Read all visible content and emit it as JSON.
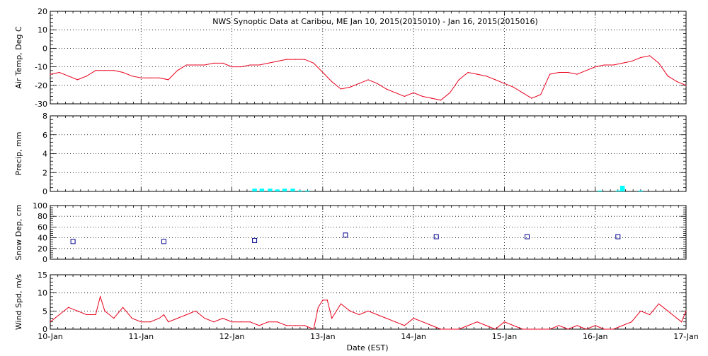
{
  "chart_data": {
    "title": "NWS Synoptic Data at Caribou, ME   Jan 10, 2015(2015010) - Jan 16, 2015(2015016)",
    "xlabel": "Date (EST)",
    "x_ticks": [
      "10-Jan",
      "11-Jan",
      "12-Jan",
      "13-Jan",
      "14-Jan",
      "15-Jan",
      "16-Jan",
      "17-Jan"
    ],
    "x_range_days": [
      0,
      7
    ],
    "grid": true,
    "panels": [
      {
        "id": "air-temp",
        "type": "line",
        "ylabel": "Air Temp, Deg C",
        "ylim": [
          -30,
          20
        ],
        "yticks": [
          "-30",
          "-20",
          "-10",
          "0",
          "10",
          "20"
        ],
        "ytick_values": [
          -30,
          -20,
          -10,
          0,
          10,
          20
        ],
        "color": "#e8001c",
        "x": [
          0,
          0.1,
          0.2,
          0.3,
          0.4,
          0.5,
          0.6,
          0.7,
          0.8,
          0.9,
          1.0,
          1.1,
          1.2,
          1.3,
          1.4,
          1.5,
          1.6,
          1.7,
          1.8,
          1.9,
          2.0,
          2.1,
          2.2,
          2.3,
          2.4,
          2.5,
          2.6,
          2.7,
          2.8,
          2.9,
          3.0,
          3.1,
          3.2,
          3.3,
          3.4,
          3.5,
          3.6,
          3.7,
          3.8,
          3.9,
          4.0,
          4.1,
          4.2,
          4.3,
          4.4,
          4.5,
          4.6,
          4.7,
          4.8,
          4.9,
          5.0,
          5.1,
          5.2,
          5.3,
          5.4,
          5.5,
          5.6,
          5.7,
          5.8,
          5.9,
          6.0,
          6.1,
          6.2,
          6.3,
          6.4,
          6.5,
          6.6,
          6.7,
          6.8,
          6.9,
          7.0
        ],
        "values": [
          -14,
          -13,
          -15,
          -17,
          -15,
          -12,
          -12,
          -12,
          -13,
          -15,
          -16,
          -16,
          -16,
          -17,
          -12,
          -9,
          -9,
          -9,
          -8,
          -8,
          -10,
          -10,
          -9,
          -9,
          -8,
          -7,
          -6,
          -6,
          -6,
          -8,
          -13,
          -18,
          -22,
          -21,
          -19,
          -17,
          -19,
          -22,
          -24,
          -26,
          -24,
          -26,
          -27,
          -28,
          -24,
          -17,
          -13,
          -14,
          -15,
          -17,
          -19,
          -21,
          -24,
          -27,
          -25,
          -14,
          -13,
          -13,
          -14,
          -12,
          -10,
          -9,
          -9,
          -8,
          -7,
          -5,
          -4,
          -8,
          -15,
          -18,
          -20
        ]
      },
      {
        "id": "precip",
        "type": "bar",
        "ylabel": "Precip, mm",
        "ylim": [
          0,
          8
        ],
        "yticks": [
          "0",
          "2",
          "4",
          "6",
          "8"
        ],
        "ytick_values": [
          0,
          2,
          4,
          6,
          8
        ],
        "color": "#00ffff",
        "bar_width_days": 0.05,
        "x": [
          2.25,
          2.33,
          2.42,
          2.5,
          2.58,
          2.67,
          2.75,
          2.83,
          6.05,
          6.25,
          6.3,
          6.5
        ],
        "values": [
          0.3,
          0.3,
          0.3,
          0.2,
          0.3,
          0.3,
          0.1,
          0.1,
          0.1,
          0.1,
          0.6,
          0.1
        ]
      },
      {
        "id": "snow-depth",
        "type": "scatter",
        "ylabel": "Snow Dep, cm",
        "ylim": [
          0,
          100
        ],
        "yticks": [
          "0",
          "20",
          "40",
          "60",
          "80",
          "100"
        ],
        "ytick_values": [
          0,
          20,
          40,
          60,
          80,
          100
        ],
        "color": "#00008b",
        "marker": "open-square",
        "x": [
          0.25,
          1.25,
          2.25,
          3.25,
          4.25,
          5.25,
          6.25
        ],
        "values": [
          33,
          33,
          35,
          45,
          42,
          42,
          42
        ]
      },
      {
        "id": "wind-speed",
        "type": "line",
        "ylabel": "Wind Spd, m/s",
        "ylim": [
          0,
          15
        ],
        "yticks": [
          "0",
          "5",
          "10",
          "15"
        ],
        "ytick_values": [
          0,
          5,
          10,
          15
        ],
        "color": "#e8001c",
        "x": [
          0,
          0.1,
          0.2,
          0.3,
          0.4,
          0.5,
          0.55,
          0.6,
          0.7,
          0.8,
          0.9,
          1.0,
          1.1,
          1.2,
          1.25,
          1.3,
          1.4,
          1.5,
          1.6,
          1.7,
          1.8,
          1.9,
          2.0,
          2.1,
          2.2,
          2.3,
          2.4,
          2.5,
          2.6,
          2.7,
          2.8,
          2.9,
          2.95,
          3.0,
          3.05,
          3.1,
          3.2,
          3.3,
          3.4,
          3.5,
          3.6,
          3.7,
          3.8,
          3.9,
          4.0,
          4.1,
          4.2,
          4.3,
          4.4,
          4.5,
          4.6,
          4.7,
          4.8,
          4.9,
          5.0,
          5.1,
          5.2,
          5.3,
          5.4,
          5.5,
          5.6,
          5.7,
          5.8,
          5.9,
          6.0,
          6.1,
          6.2,
          6.3,
          6.4,
          6.5,
          6.6,
          6.7,
          6.8,
          6.9,
          6.95,
          7.0
        ],
        "values": [
          2,
          4,
          6,
          5,
          4,
          4,
          9,
          5,
          3,
          6,
          3,
          2,
          2,
          3,
          4,
          2,
          3,
          4,
          5,
          3,
          2,
          3,
          2,
          2,
          2,
          1,
          2,
          2,
          1,
          1,
          1,
          0,
          6,
          8,
          8,
          3,
          7,
          5,
          4,
          5,
          4,
          3,
          2,
          1,
          3,
          2,
          1,
          0,
          0,
          0,
          1,
          2,
          1,
          0,
          2,
          1,
          0,
          0,
          0,
          0,
          1,
          0,
          1,
          0,
          1,
          0,
          0,
          1,
          2,
          5,
          4,
          7,
          5,
          3,
          2,
          5
        ]
      }
    ]
  }
}
